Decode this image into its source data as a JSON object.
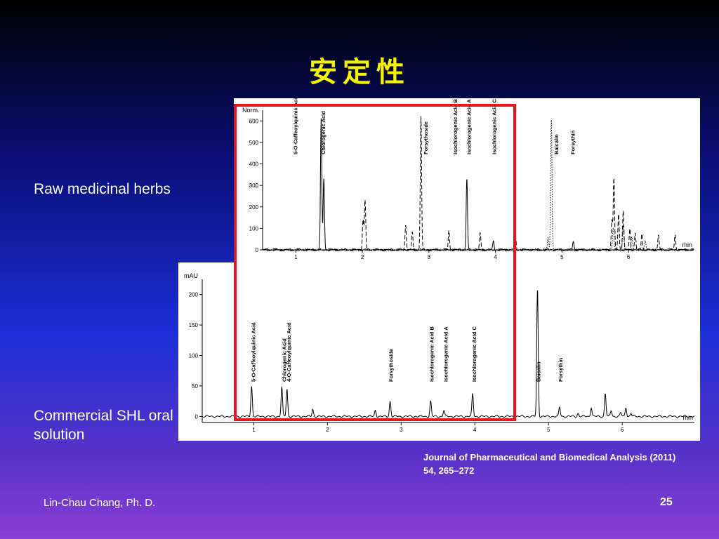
{
  "slide": {
    "title": "安定性",
    "raw_label": "Raw medicinal herbs",
    "commercial_label": "Commercial SHL oral solution",
    "citation": "Journal of Pharmaceutical and Biomedical Analysis (2011) 54, 265–272",
    "author": "Lin-Chau Chang, Ph. D.",
    "page_number": "25",
    "highlight_color": "#e8141c",
    "title_color": "#f4f400"
  },
  "chart_data": [
    {
      "type": "line",
      "ylabel": "Norm.",
      "xlabel": "min",
      "xlim": [
        0.5,
        6.98
      ],
      "ylim": [
        0,
        650
      ],
      "x_ticks": [
        1,
        2,
        3,
        4,
        5,
        6
      ],
      "y_ticks": [
        0,
        100,
        200,
        300,
        400,
        500,
        600
      ],
      "series_styles": [
        "solid",
        "dashed",
        "dotted"
      ],
      "series": [
        {
          "peaks": [
            [
              1.38,
              610
            ],
            [
              1.42,
              330
            ],
            [
              3.57,
              335
            ],
            [
              3.97,
              40
            ],
            [
              5.17,
              40
            ]
          ]
        },
        {
          "peaks": [
            [
              2.04,
              230
            ],
            [
              2.01,
              140
            ],
            [
              2.65,
              120
            ],
            [
              2.75,
              80
            ],
            [
              2.88,
              620
            ],
            [
              3.3,
              90
            ],
            [
              3.77,
              80
            ],
            [
              4.3,
              70
            ],
            [
              5.78,
              330
            ],
            [
              5.75,
              140
            ],
            [
              5.85,
              170
            ],
            [
              5.92,
              180
            ],
            [
              6.02,
              100
            ],
            [
              6.1,
              80
            ],
            [
              6.2,
              75
            ],
            [
              6.45,
              70
            ],
            [
              6.7,
              70
            ]
          ]
        },
        {
          "peaks": [
            [
              4.84,
              610
            ],
            [
              4.79,
              60
            ],
            [
              5.77,
              100
            ],
            [
              5.92,
              110
            ],
            [
              6.05,
              60
            ],
            [
              6.25,
              40
            ]
          ]
        }
      ],
      "peak_labels": [
        {
          "text": "5-O-Caffeoylquinic Acid",
          "x": 0.99
        },
        {
          "text": "Chlorogenic Acid",
          "x": 1.41
        },
        {
          "text": "Forsythoside",
          "x": 2.95
        },
        {
          "text": "Isochlorogenic Acid B",
          "x": 3.39
        },
        {
          "text": "Isochlorogenic Acid A",
          "x": 3.6
        },
        {
          "text": "Isochlorogenic Acid C",
          "x": 3.98
        },
        {
          "text": "Baicalin",
          "x": 4.91
        },
        {
          "text": "Forsythin",
          "x": 5.16
        }
      ]
    },
    {
      "type": "line",
      "ylabel": "mAU",
      "xlabel": "min",
      "xlim": [
        0.3,
        6.98
      ],
      "ylim": [
        -10,
        225
      ],
      "x_ticks": [
        1,
        2,
        3,
        4,
        5,
        6
      ],
      "y_ticks": [
        0,
        50,
        100,
        150,
        200
      ],
      "series_styles": [
        "solid"
      ],
      "series": [
        {
          "peaks": [
            [
              0.97,
              50
            ],
            [
              1.38,
              48
            ],
            [
              1.45,
              45
            ],
            [
              1.8,
              12
            ],
            [
              2.65,
              10
            ],
            [
              2.85,
              25
            ],
            [
              3.4,
              25
            ],
            [
              3.58,
              10
            ],
            [
              3.97,
              37
            ],
            [
              4.85,
              210
            ],
            [
              5.15,
              15
            ],
            [
              5.4,
              5
            ],
            [
              5.58,
              15
            ],
            [
              5.77,
              38
            ],
            [
              5.85,
              10
            ],
            [
              5.98,
              6
            ],
            [
              6.05,
              15
            ],
            [
              6.12,
              5
            ]
          ]
        }
      ],
      "peak_labels": [
        {
          "text": "5-O-Caffeoylquinic Acid",
          "x": 0.99
        },
        {
          "text": "Chlorogenic Acid",
          "x": 1.41
        },
        {
          "text": "4-O-Caffeoylquinic Acid",
          "x": 1.47
        },
        {
          "text": "Forsythoside",
          "x": 2.86
        },
        {
          "text": "Isochlorogenic Acid B",
          "x": 3.41
        },
        {
          "text": "Isochlorogenic Acid A",
          "x": 3.6
        },
        {
          "text": "Isochlorogenic Acid C",
          "x": 3.99
        },
        {
          "text": "Baicalin",
          "x": 4.86
        },
        {
          "text": "Forsythin",
          "x": 5.16
        }
      ]
    }
  ]
}
